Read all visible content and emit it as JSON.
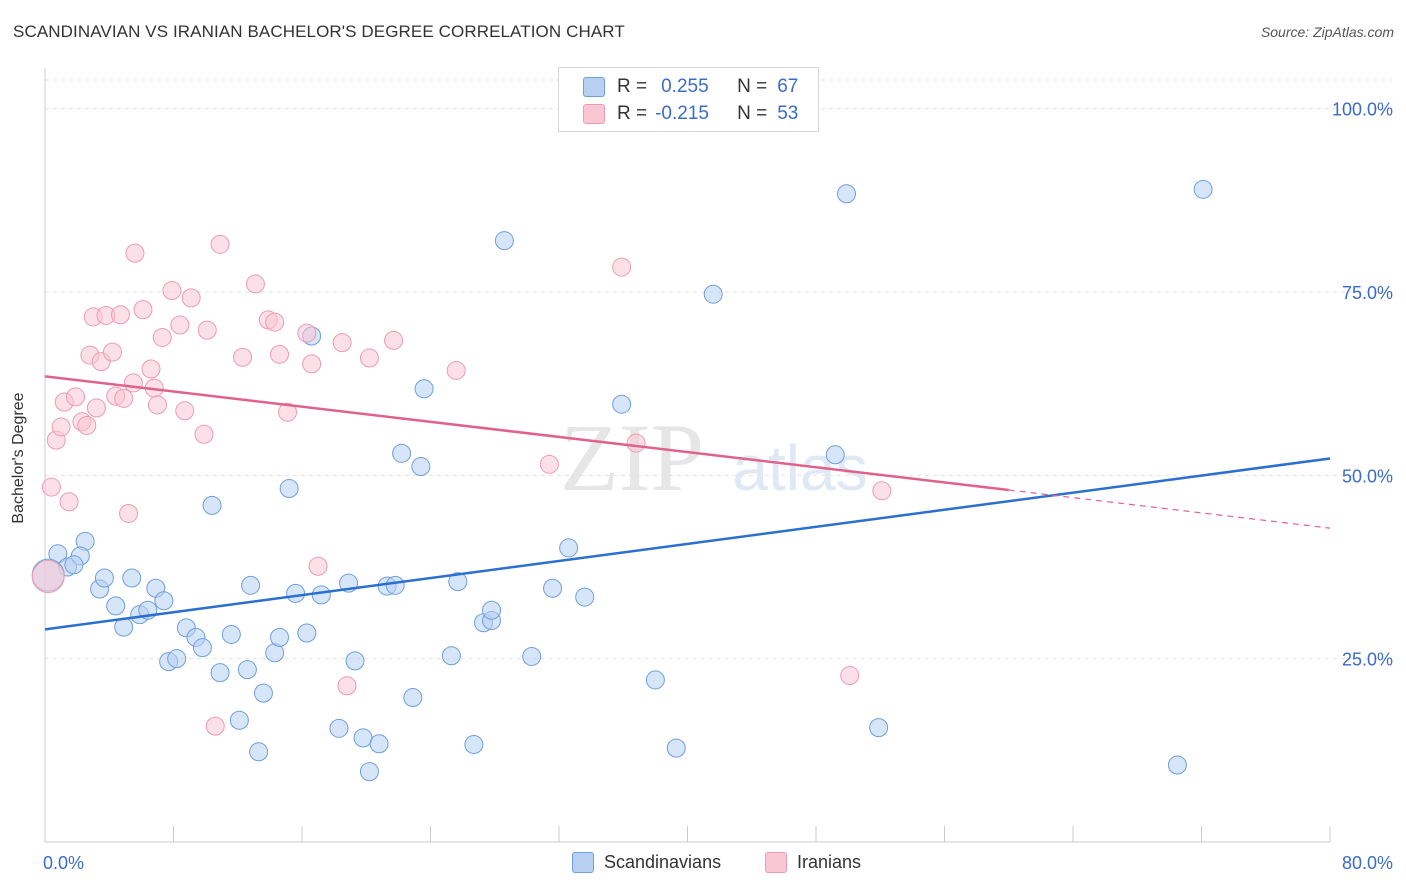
{
  "title": "SCANDINAVIAN VS IRANIAN BACHELOR'S DEGREE CORRELATION CHART",
  "source": "Source: ZipAtlas.com",
  "watermark": {
    "zip": "ZIP",
    "atlas": "atlas"
  },
  "legend": {
    "rows": [
      {
        "r_label": "R =",
        "r_value": "0.255",
        "n_label": "N =",
        "n_value": "67",
        "color": "#b7d0f2"
      },
      {
        "r_label": "R =",
        "r_value": "-0.215",
        "n_label": "N =",
        "n_value": "53",
        "color": "#f9c6d4"
      }
    ]
  },
  "bottom_legend": [
    {
      "label": "Scandinavians",
      "color": "#b7d0f2"
    },
    {
      "label": "Iranians",
      "color": "#f9c6d4"
    }
  ],
  "chart_data": {
    "type": "scatter",
    "ylabel": "Bachelor's Degree",
    "xlabel": "",
    "xlim": [
      0,
      80
    ],
    "ylim": [
      0,
      105
    ],
    "x_tick_labels": [
      "0.0%",
      "80.0%"
    ],
    "y_ticks": [
      25,
      50,
      75,
      100
    ],
    "y_tick_labels": [
      "25.0%",
      "50.0%",
      "75.0%",
      "100.0%"
    ],
    "grid": "horizontal dashed",
    "accent_text_color": "#3b6cc5",
    "series": [
      {
        "name": "Scandinavians",
        "color": "#b7d0f2",
        "stroke": "#6f9fdc",
        "line_color": "#2b6fcf",
        "trend": {
          "x": [
            0,
            80
          ],
          "y": [
            29.0,
            52.3
          ]
        },
        "points": [
          [
            0.8,
            39.3
          ],
          [
            1.4,
            37.5
          ],
          [
            2.5,
            41.0
          ],
          [
            2.2,
            39.0
          ],
          [
            1.8,
            37.8
          ],
          [
            3.4,
            34.5
          ],
          [
            3.7,
            36.0
          ],
          [
            5.4,
            36.0
          ],
          [
            4.4,
            32.2
          ],
          [
            4.9,
            29.3
          ],
          [
            5.9,
            31.0
          ],
          [
            6.4,
            31.6
          ],
          [
            6.9,
            34.6
          ],
          [
            7.4,
            32.9
          ],
          [
            7.7,
            24.6
          ],
          [
            8.2,
            25.0
          ],
          [
            8.8,
            29.2
          ],
          [
            9.4,
            27.9
          ],
          [
            9.8,
            26.5
          ],
          [
            10.4,
            45.9
          ],
          [
            10.9,
            23.1
          ],
          [
            11.6,
            28.3
          ],
          [
            12.1,
            16.6
          ],
          [
            12.6,
            23.5
          ],
          [
            12.8,
            35.0
          ],
          [
            13.3,
            12.3
          ],
          [
            13.6,
            20.3
          ],
          [
            14.3,
            25.8
          ],
          [
            14.6,
            27.9
          ],
          [
            15.2,
            48.2
          ],
          [
            15.6,
            33.9
          ],
          [
            16.3,
            28.5
          ],
          [
            16.6,
            69.0
          ],
          [
            17.2,
            33.7
          ],
          [
            18.3,
            15.5
          ],
          [
            18.9,
            35.3
          ],
          [
            19.3,
            24.7
          ],
          [
            19.8,
            14.2
          ],
          [
            20.2,
            9.6
          ],
          [
            20.8,
            13.4
          ],
          [
            21.3,
            34.9
          ],
          [
            21.8,
            35.0
          ],
          [
            22.2,
            53.0
          ],
          [
            22.9,
            19.7
          ],
          [
            23.4,
            51.2
          ],
          [
            23.6,
            61.8
          ],
          [
            25.3,
            25.4
          ],
          [
            25.7,
            35.5
          ],
          [
            26.7,
            13.3
          ],
          [
            27.3,
            29.9
          ],
          [
            27.8,
            30.2
          ],
          [
            27.8,
            31.6
          ],
          [
            28.6,
            82.0
          ],
          [
            30.3,
            25.3
          ],
          [
            31.6,
            34.6
          ],
          [
            32.6,
            40.1
          ],
          [
            33.6,
            33.4
          ],
          [
            35.9,
            59.7
          ],
          [
            38.0,
            22.1
          ],
          [
            39.3,
            12.8
          ],
          [
            41.6,
            74.7
          ],
          [
            49.2,
            52.8
          ],
          [
            49.9,
            88.4
          ],
          [
            51.9,
            15.6
          ],
          [
            70.5,
            10.5
          ],
          [
            72.1,
            89.0
          ],
          [
            0.2,
            36.4
          ]
        ]
      },
      {
        "name": "Iranians",
        "color": "#f9c6d4",
        "stroke": "#ec9bb4",
        "line_color": "#e0628a",
        "trend": {
          "x": [
            0,
            60
          ],
          "y": [
            63.5,
            48.0
          ]
        },
        "trend_dashed": {
          "x": [
            60,
            80
          ],
          "y": [
            48.0,
            42.8
          ]
        },
        "points": [
          [
            0.2,
            36.2
          ],
          [
            0.4,
            48.4
          ],
          [
            0.7,
            54.8
          ],
          [
            1.0,
            56.6
          ],
          [
            1.2,
            60.0
          ],
          [
            1.5,
            46.4
          ],
          [
            1.9,
            60.7
          ],
          [
            2.3,
            57.3
          ],
          [
            2.6,
            56.8
          ],
          [
            2.8,
            66.4
          ],
          [
            3.0,
            71.6
          ],
          [
            3.2,
            59.2
          ],
          [
            3.5,
            65.5
          ],
          [
            3.8,
            71.8
          ],
          [
            4.2,
            66.8
          ],
          [
            4.4,
            60.8
          ],
          [
            4.7,
            71.9
          ],
          [
            4.9,
            60.5
          ],
          [
            5.2,
            44.8
          ],
          [
            5.5,
            62.6
          ],
          [
            5.6,
            80.3
          ],
          [
            6.1,
            72.6
          ],
          [
            6.6,
            64.5
          ],
          [
            6.8,
            61.9
          ],
          [
            7.0,
            59.6
          ],
          [
            7.3,
            68.8
          ],
          [
            7.9,
            75.2
          ],
          [
            8.4,
            70.5
          ],
          [
            8.7,
            58.8
          ],
          [
            9.1,
            74.2
          ],
          [
            9.9,
            55.6
          ],
          [
            10.1,
            69.8
          ],
          [
            10.6,
            15.8
          ],
          [
            10.9,
            81.5
          ],
          [
            12.3,
            66.1
          ],
          [
            13.1,
            76.1
          ],
          [
            13.9,
            71.2
          ],
          [
            14.3,
            70.9
          ],
          [
            14.6,
            66.5
          ],
          [
            15.1,
            58.6
          ],
          [
            16.3,
            69.4
          ],
          [
            16.6,
            65.2
          ],
          [
            17.0,
            37.6
          ],
          [
            18.5,
            68.1
          ],
          [
            18.8,
            21.3
          ],
          [
            20.2,
            66.0
          ],
          [
            21.7,
            68.4
          ],
          [
            25.6,
            64.3
          ],
          [
            31.4,
            51.5
          ],
          [
            35.9,
            78.4
          ],
          [
            36.8,
            54.4
          ],
          [
            50.1,
            22.7
          ],
          [
            52.1,
            47.9
          ]
        ]
      }
    ]
  }
}
